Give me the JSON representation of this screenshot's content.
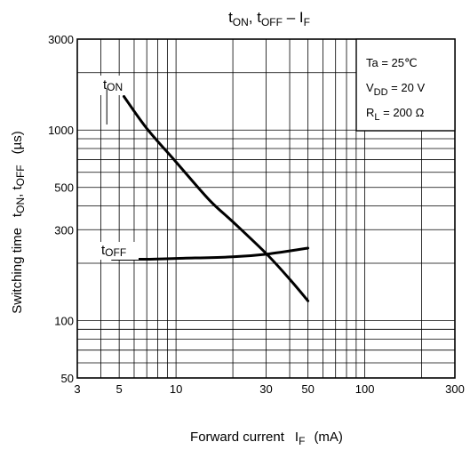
{
  "chart_data": {
    "type": "line",
    "title": {
      "main": "t",
      "sub1": "ON",
      "sep": ", t",
      "sub2": "OFF",
      "dash": " – I",
      "sub3": "F"
    },
    "xlabel": {
      "text": "Forward current",
      "symbol": "I",
      "sub": "F",
      "unit": "(mA)"
    },
    "ylabel": {
      "text": "Switching time",
      "symbol1": "t",
      "sub1": "ON",
      "sep": ", t",
      "sub2": "OFF",
      "unit": "(µs)"
    },
    "x_scale": "log",
    "y_scale": "log",
    "xlim": [
      3,
      300
    ],
    "ylim": [
      50,
      3000
    ],
    "x_ticks": [
      3,
      5,
      10,
      30,
      50,
      100,
      300
    ],
    "y_ticks": [
      50,
      100,
      300,
      500,
      1000,
      3000
    ],
    "grid": true,
    "conditions": [
      {
        "text": "Ta = 25℃"
      },
      {
        "text": "V",
        "sub": "DD",
        "rest": " = 20 V"
      },
      {
        "text": "R",
        "sub": "L",
        "rest": " = 200 Ω"
      }
    ],
    "series": [
      {
        "label": "t",
        "label_sub": "ON",
        "x": [
          5.3,
          7,
          10,
          15,
          20,
          30,
          40,
          50
        ],
        "y": [
          1500,
          1020,
          680,
          430,
          330,
          225,
          165,
          127
        ]
      },
      {
        "label": "t",
        "label_sub": "OFF",
        "x": [
          4.6,
          7,
          10,
          20,
          30,
          50
        ],
        "y": [
          210,
          210,
          212,
          216,
          223,
          240
        ]
      }
    ]
  }
}
